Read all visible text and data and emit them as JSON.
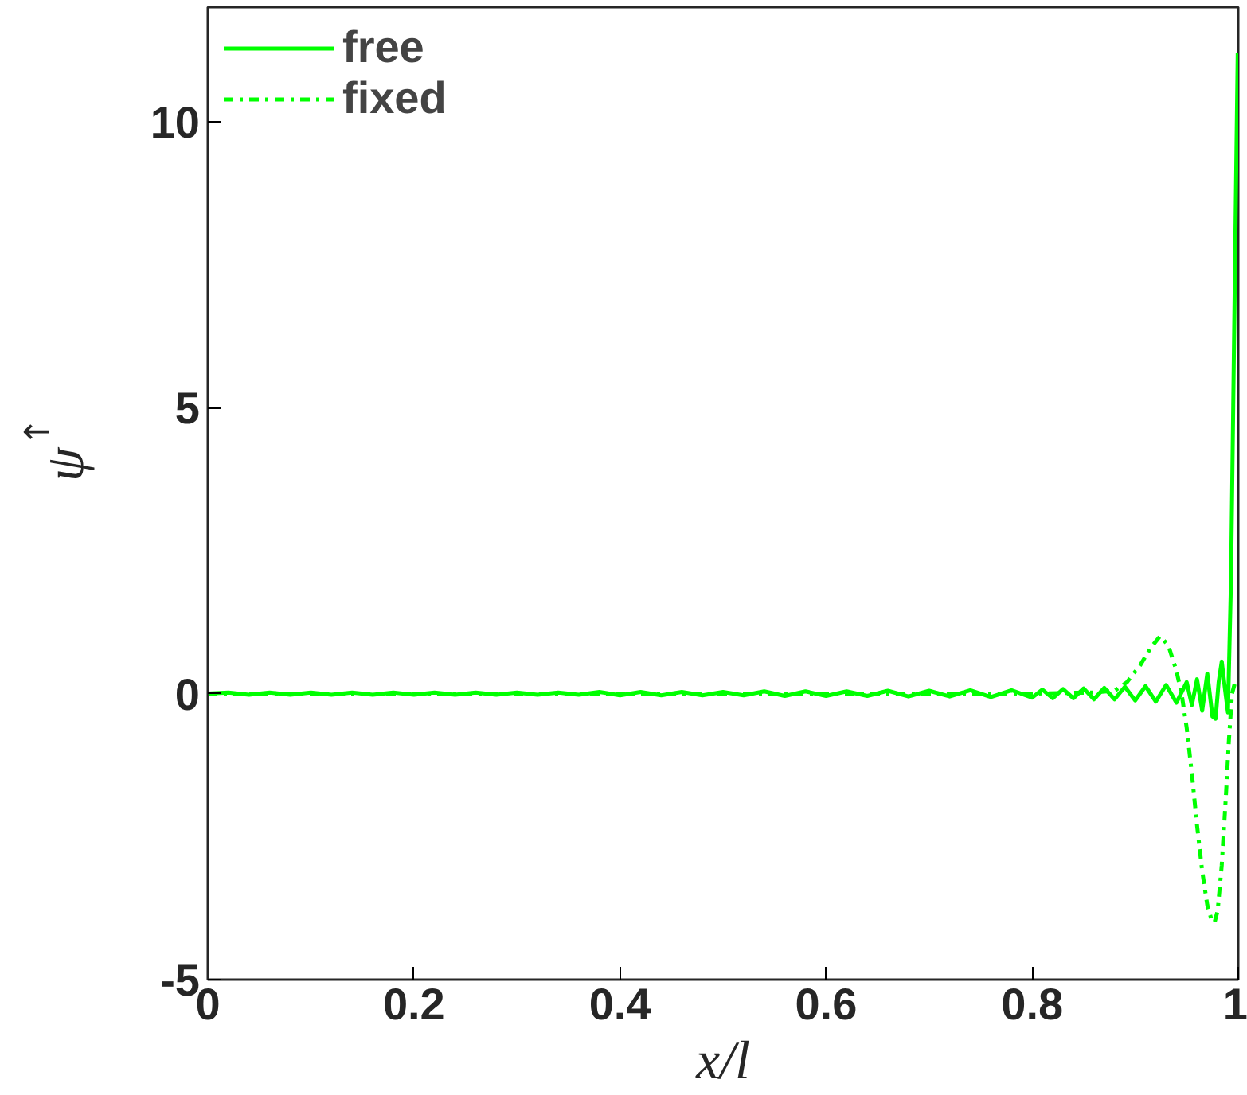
{
  "chart_data": {
    "type": "line",
    "xlabel": "x/l",
    "ylabel": "ψ$_{↑}$",
    "xlim": [
      0,
      1
    ],
    "ylim": [
      -5,
      12
    ],
    "xticks": [
      0,
      0.2,
      0.4,
      0.6,
      0.8,
      {
        "value": 1,
        "label": "1"
      }
    ],
    "yticks": [
      -5,
      0,
      5,
      10
    ],
    "grid": false,
    "legend": "top left",
    "series": [
      {
        "name": "free",
        "color": "#00ff00",
        "line_style": "solid",
        "x": [
          0,
          0.02,
          0.04,
          0.06,
          0.08,
          0.1,
          0.12,
          0.14,
          0.16,
          0.18,
          0.2,
          0.22,
          0.24,
          0.26,
          0.28,
          0.3,
          0.32,
          0.34,
          0.36,
          0.38,
          0.4,
          0.42,
          0.44,
          0.46,
          0.48,
          0.5,
          0.52,
          0.54,
          0.56,
          0.58,
          0.6,
          0.62,
          0.64,
          0.66,
          0.68,
          0.7,
          0.72,
          0.74,
          0.76,
          0.78,
          0.8,
          0.81,
          0.82,
          0.83,
          0.84,
          0.85,
          0.86,
          0.87,
          0.88,
          0.89,
          0.9,
          0.91,
          0.92,
          0.93,
          0.94,
          0.95,
          0.955,
          0.96,
          0.965,
          0.97,
          0.975,
          0.978,
          0.981,
          0.984,
          0.987,
          0.99,
          0.993,
          0.9995
        ],
        "values": [
          0,
          0.02,
          -0.02,
          0.02,
          -0.02,
          0.02,
          -0.02,
          0.02,
          -0.02,
          0.02,
          -0.02,
          0.02,
          -0.02,
          0.02,
          -0.02,
          0.02,
          -0.02,
          0.02,
          -0.02,
          0.03,
          -0.03,
          0.03,
          -0.03,
          0.03,
          -0.03,
          0.03,
          -0.03,
          0.04,
          -0.04,
          0.04,
          -0.04,
          0.04,
          -0.04,
          0.05,
          -0.05,
          0.05,
          -0.05,
          0.06,
          -0.06,
          0.06,
          -0.07,
          0.07,
          -0.08,
          0.08,
          -0.08,
          0.09,
          -0.1,
          0.1,
          -0.1,
          0.12,
          -0.12,
          0.13,
          -0.14,
          0.15,
          -0.16,
          0.2,
          -0.2,
          0.25,
          -0.3,
          0.35,
          -0.4,
          -0.44,
          0.2,
          0.56,
          0.1,
          -0.33,
          2.0,
          11.2
        ]
      },
      {
        "name": "fixed",
        "color": "#00ff00",
        "line_style": "dashdot",
        "x": [
          0,
          0.2,
          0.4,
          0.6,
          0.8,
          0.86,
          0.88,
          0.892,
          0.905,
          0.915,
          0.924,
          0.932,
          0.94,
          0.945,
          0.95,
          0.955,
          0.96,
          0.965,
          0.97,
          0.974,
          0.977,
          0.98,
          0.984,
          0.988,
          0.991,
          0.994,
          0.998
        ],
        "values": [
          0,
          0,
          0,
          0,
          0,
          0.02,
          0.05,
          0.2,
          0.5,
          0.8,
          1.0,
          0.85,
          0.4,
          0,
          -0.6,
          -1.4,
          -2.3,
          -3.1,
          -3.7,
          -3.95,
          -4.0,
          -3.8,
          -3.0,
          -1.8,
          -0.8,
          0,
          0.27
        ]
      }
    ]
  }
}
